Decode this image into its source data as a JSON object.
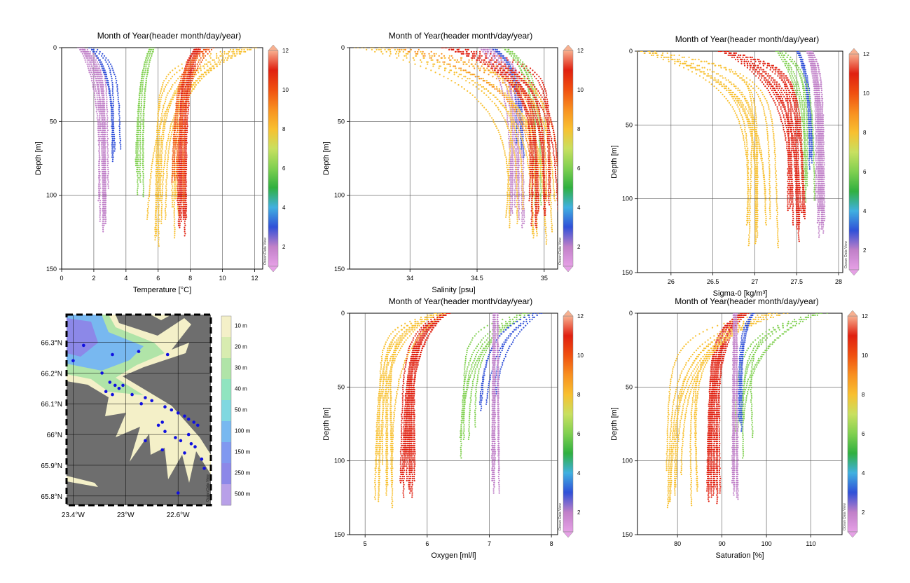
{
  "profiles": {
    "title": "Month of Year(header month/day/year)",
    "depth_label": "Depth [m]",
    "colorbar": {
      "ticks": [
        "2",
        "4",
        "6",
        "8",
        "10",
        "12"
      ],
      "range": [
        1,
        12
      ],
      "watermark": "Ocean Data View"
    },
    "palette": {
      "1": "#e6a0e6",
      "2": "#c080c8",
      "3": "#3050d8",
      "4": "#40b0e0",
      "5": "#30b040",
      "6": "#80d050",
      "7": "#c8e060",
      "8": "#f8c030",
      "9": "#f89020",
      "10": "#f05010",
      "11": "#e02010",
      "12": "#f8b090"
    }
  },
  "charts": [
    {
      "id": "temperature",
      "xlabel": "Temperature [°C]",
      "xticks": [
        "0",
        "2",
        "4",
        "6",
        "8",
        "10",
        "12"
      ],
      "yticks": [
        "0",
        "50",
        "100",
        "150"
      ],
      "xlim": [
        0,
        12.5
      ],
      "ylim": [
        0,
        150
      ],
      "series": [
        {
          "month": 2,
          "surface": 1.2,
          "bottom": 2.6,
          "maxdepth": 128,
          "count": 12
        },
        {
          "month": 3,
          "surface": 1.8,
          "bottom": 3.3,
          "maxdepth": 80,
          "count": 5
        },
        {
          "month": 6,
          "surface": 5.6,
          "bottom": 4.8,
          "maxdepth": 108,
          "count": 6
        },
        {
          "month": 8,
          "surface": 11.5,
          "bottom": 6.2,
          "maxdepth": 135,
          "count": 12
        },
        {
          "month": 11,
          "surface": 8.5,
          "bottom": 7.5,
          "maxdepth": 130,
          "count": 14
        },
        {
          "month": 10,
          "surface": 9.2,
          "bottom": 7.2,
          "maxdepth": 115,
          "count": 6
        }
      ]
    },
    {
      "id": "salinity",
      "xlabel": "Salinity [psu]",
      "xticks": [
        "34",
        "34.5",
        "35"
      ],
      "yticks": [
        "0",
        "50",
        "100",
        "150"
      ],
      "xlim": [
        33.55,
        35.1
      ],
      "ylim": [
        0,
        150
      ],
      "series": [
        {
          "month": 2,
          "surface": 34.55,
          "bottom": 34.8,
          "maxdepth": 128,
          "count": 10
        },
        {
          "month": 3,
          "surface": 34.6,
          "bottom": 34.8,
          "maxdepth": 82,
          "count": 4
        },
        {
          "month": 6,
          "surface": 34.7,
          "bottom": 34.95,
          "maxdepth": 108,
          "count": 5
        },
        {
          "month": 8,
          "surface": 33.7,
          "bottom": 34.9,
          "maxdepth": 135,
          "count": 12
        },
        {
          "month": 9,
          "surface": 33.9,
          "bottom": 35.0,
          "maxdepth": 120,
          "count": 6
        },
        {
          "month": 11,
          "surface": 34.3,
          "bottom": 35.0,
          "maxdepth": 130,
          "count": 14
        }
      ]
    },
    {
      "id": "sigma",
      "xlabel": "Sigma-0 [kg/m³]",
      "xticks": [
        "26",
        "26.5",
        "27",
        "27.5",
        "28"
      ],
      "yticks": [
        "0",
        "50",
        "100",
        "150"
      ],
      "xlim": [
        25.6,
        28.05
      ],
      "ylim": [
        0,
        150
      ],
      "series": [
        {
          "month": 2,
          "surface": 27.65,
          "bottom": 27.78,
          "maxdepth": 128,
          "count": 12
        },
        {
          "month": 3,
          "surface": 27.5,
          "bottom": 27.65,
          "maxdepth": 82,
          "count": 5
        },
        {
          "month": 6,
          "surface": 27.3,
          "bottom": 27.65,
          "maxdepth": 108,
          "count": 6
        },
        {
          "month": 8,
          "surface": 25.7,
          "bottom": 27.1,
          "maxdepth": 135,
          "count": 12
        },
        {
          "month": 11,
          "surface": 26.6,
          "bottom": 27.45,
          "maxdepth": 130,
          "count": 14
        }
      ]
    },
    {
      "id": "oxygen",
      "xlabel": "Oxygen [ml/l]",
      "xticks": [
        "5",
        "6",
        "7",
        "8"
      ],
      "yticks": [
        "0",
        "50",
        "100",
        "150"
      ],
      "xlim": [
        4.75,
        8.1
      ],
      "ylim": [
        0,
        150
      ],
      "series": [
        {
          "month": 11,
          "surface": 6.3,
          "bottom": 5.7,
          "maxdepth": 130,
          "count": 16
        },
        {
          "month": 8,
          "surface": 6.2,
          "bottom": 5.3,
          "maxdepth": 135,
          "count": 10
        },
        {
          "month": 6,
          "surface": 7.6,
          "bottom": 6.6,
          "maxdepth": 100,
          "count": 6
        },
        {
          "month": 3,
          "surface": 7.8,
          "bottom": 7.0,
          "maxdepth": 82,
          "count": 5
        },
        {
          "month": 2,
          "surface": 7.1,
          "bottom": 7.1,
          "maxdepth": 128,
          "count": 10
        }
      ]
    },
    {
      "id": "saturation",
      "xlabel": "Saturation [%]",
      "xticks": [
        "80",
        "90",
        "100",
        "110"
      ],
      "yticks": [
        "0",
        "50",
        "100",
        "150"
      ],
      "xlim": [
        71,
        117
      ],
      "ylim": [
        0,
        150
      ],
      "series": [
        {
          "month": 11,
          "surface": 95,
          "bottom": 88,
          "maxdepth": 130,
          "count": 16
        },
        {
          "month": 8,
          "surface": 102,
          "bottom": 80,
          "maxdepth": 135,
          "count": 10
        },
        {
          "month": 6,
          "surface": 112,
          "bottom": 94,
          "maxdepth": 100,
          "count": 6
        },
        {
          "month": 2,
          "surface": 93,
          "bottom": 93,
          "maxdepth": 128,
          "count": 10
        },
        {
          "month": 3,
          "surface": 97,
          "bottom": 94,
          "maxdepth": 82,
          "count": 4
        }
      ]
    }
  ],
  "map": {
    "xticks": [
      "23.4°W",
      "23°W",
      "22.6°W"
    ],
    "yticks": [
      "66.3°N",
      "66.2°N",
      "66.1°N",
      "66°N",
      "65.9°N",
      "65.8°N"
    ],
    "lon_range": [
      -23.45,
      -22.35
    ],
    "lat_range": [
      65.77,
      66.39
    ],
    "legend": [
      "10 m",
      "20 m",
      "30 m",
      "40 m",
      "50 m",
      "100 m",
      "150 m",
      "250 m",
      "500 m"
    ],
    "legend_colors": [
      "#f4f0c8",
      "#d8ecb0",
      "#b0e4a8",
      "#90e4c0",
      "#80d8e0",
      "#78b8f0",
      "#8098f0",
      "#8c88e8",
      "#b8a0e8"
    ],
    "watermark": "Ocean Data View",
    "stations": [
      [
        -23.32,
        66.29
      ],
      [
        -23.4,
        66.24
      ],
      [
        -23.1,
        66.26
      ],
      [
        -22.9,
        66.27
      ],
      [
        -22.68,
        66.26
      ],
      [
        -23.18,
        66.2
      ],
      [
        -23.12,
        66.17
      ],
      [
        -23.05,
        66.15
      ],
      [
        -23.15,
        66.14
      ],
      [
        -23.08,
        66.16
      ],
      [
        -23.02,
        66.16
      ],
      [
        -23.1,
        66.13
      ],
      [
        -22.95,
        66.13
      ],
      [
        -22.85,
        66.12
      ],
      [
        -22.8,
        66.11
      ],
      [
        -22.88,
        66.1
      ],
      [
        -22.7,
        66.09
      ],
      [
        -22.65,
        66.08
      ],
      [
        -22.6,
        66.07
      ],
      [
        -22.55,
        66.06
      ],
      [
        -22.52,
        66.05
      ],
      [
        -22.48,
        66.04
      ],
      [
        -22.45,
        66.03
      ],
      [
        -22.72,
        66.04
      ],
      [
        -22.75,
        66.03
      ],
      [
        -22.7,
        66.01
      ],
      [
        -22.58,
        65.98
      ],
      [
        -22.5,
        65.97
      ],
      [
        -22.47,
        65.96
      ],
      [
        -22.55,
        65.94
      ],
      [
        -22.42,
        65.92
      ],
      [
        -22.4,
        65.89
      ],
      [
        -22.6,
        65.81
      ],
      [
        -22.72,
        65.95
      ],
      [
        -22.85,
        65.98
      ],
      [
        -22.62,
        65.99
      ],
      [
        -22.52,
        66.0
      ]
    ]
  }
}
